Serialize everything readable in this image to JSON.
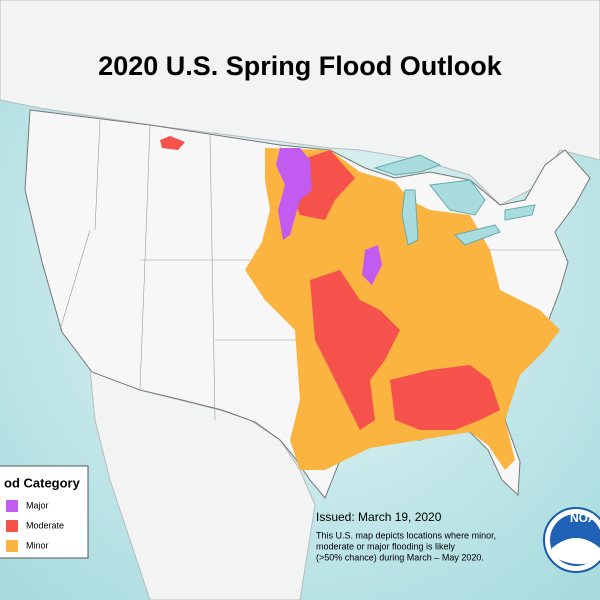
{
  "header": {
    "title": "2020 U.S. Spring Flood Outlook"
  },
  "legend": {
    "title": "od Category",
    "items": [
      {
        "label": "Major",
        "color": "#c25cf0"
      },
      {
        "label": "Moderate",
        "color": "#f4524b"
      },
      {
        "label": "Minor",
        "color": "#fbb43f"
      }
    ]
  },
  "note": {
    "issued": "Issued:  March 19, 2020",
    "lines": [
      "This U.S. map depicts locations where minor,",
      "moderate or major flooding is likely",
      "(>50% chance) during March – May 2020."
    ]
  },
  "logo": {
    "text": "NOA"
  }
}
